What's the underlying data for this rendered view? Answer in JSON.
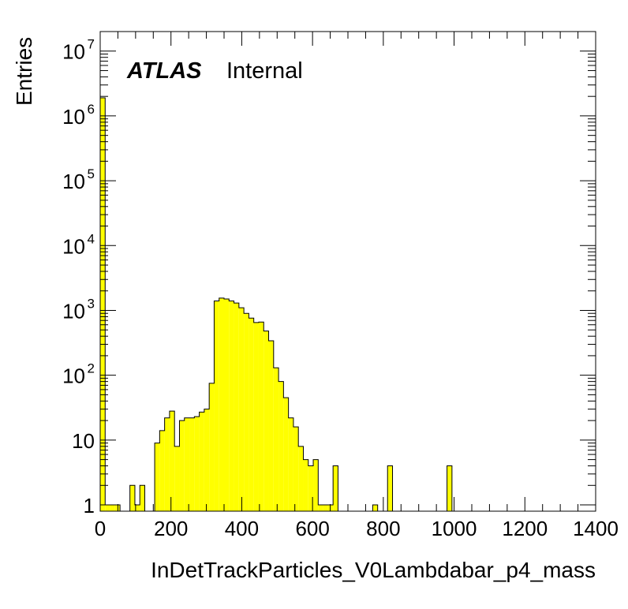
{
  "chart_data": {
    "type": "histogram",
    "title": "",
    "xlabel": "InDetTrackParticles_V0Lambdabar_p4_mass",
    "ylabel": "Entries",
    "xlim": [
      0,
      1400
    ],
    "ylim": [
      0.8,
      20000000
    ],
    "yscale": "log",
    "bin_width": 14,
    "atlas_label": "ATLAS",
    "atlas_sublabel": "Internal",
    "fill_color": "#ffff00",
    "line_color": "#000000",
    "x_ticks": [
      0,
      200,
      400,
      600,
      800,
      1000,
      1200,
      1400
    ],
    "x_tick_labels": [
      "0",
      "200",
      "400",
      "600",
      "800",
      "1000",
      "1200",
      "1400"
    ],
    "y_ticks": [
      1,
      10,
      100,
      1000,
      10000,
      100000,
      1000000,
      10000000
    ],
    "y_tick_labels": [
      {
        "base": "1",
        "exp": ""
      },
      {
        "base": "10",
        "exp": ""
      },
      {
        "base": "10",
        "exp": "2"
      },
      {
        "base": "10",
        "exp": "3"
      },
      {
        "base": "10",
        "exp": "4"
      },
      {
        "base": "10",
        "exp": "5"
      },
      {
        "base": "10",
        "exp": "6"
      },
      {
        "base": "10",
        "exp": "7"
      }
    ],
    "values": [
      1900000,
      1,
      1,
      1,
      0,
      0,
      2,
      1,
      2,
      0,
      0,
      9,
      14,
      22,
      28,
      8,
      20,
      22,
      22,
      23,
      27,
      30,
      75,
      1400,
      1550,
      1500,
      1400,
      1300,
      1100,
      900,
      760,
      650,
      660,
      480,
      340,
      130,
      80,
      45,
      22,
      16,
      8,
      5,
      4,
      5,
      1,
      1,
      1,
      4,
      0,
      0,
      0,
      0,
      0,
      0,
      0,
      1,
      0,
      0,
      4,
      0,
      0,
      0,
      0,
      0,
      0,
      0,
      0,
      0,
      0,
      0,
      4,
      0,
      0,
      0,
      0,
      0,
      0,
      0,
      0,
      0,
      0,
      0,
      0,
      0,
      0,
      0,
      0,
      0,
      0,
      0,
      0,
      0,
      0,
      0,
      0,
      0,
      0,
      0,
      0,
      0
    ]
  }
}
